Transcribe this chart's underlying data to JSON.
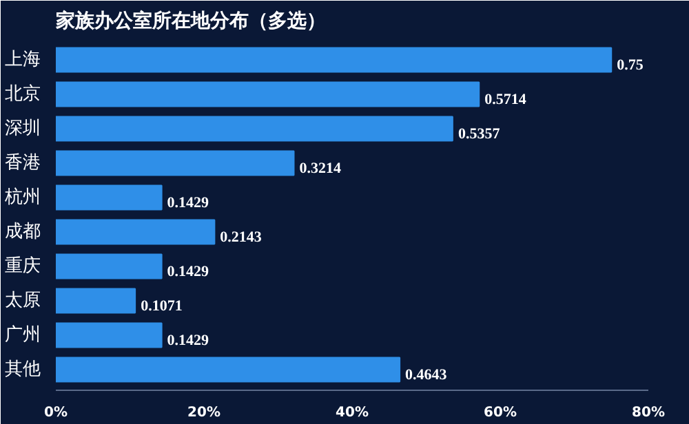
{
  "chart_data": {
    "type": "bar",
    "orientation": "horizontal",
    "title": "家族办公室所在地分布（多选）",
    "categories": [
      "上海",
      "北京",
      "深圳",
      "香港",
      "杭州",
      "成都",
      "重庆",
      "太原",
      "广州",
      "其他"
    ],
    "values": [
      0.75,
      0.5714,
      0.5357,
      0.3214,
      0.1429,
      0.2143,
      0.1429,
      0.1071,
      0.1429,
      0.4643
    ],
    "color": "#2f8fe8",
    "data_labels": true,
    "xlim": [
      0,
      0.8
    ],
    "xticks": [
      {
        "value": 0,
        "label": "0%"
      },
      {
        "value": 0.2,
        "label": "20%"
      },
      {
        "value": 0.4,
        "label": "40%"
      },
      {
        "value": 0.6,
        "label": "60%"
      },
      {
        "value": 0.8,
        "label": "80%"
      }
    ]
  }
}
